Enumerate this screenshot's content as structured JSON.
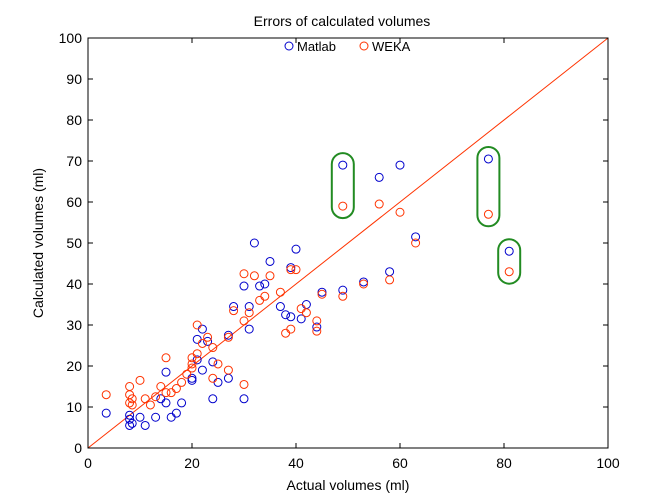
{
  "chart_data": {
    "type": "scatter",
    "title": "Errors of calculated volumes",
    "xlabel": "Actual volumes (ml)",
    "ylabel": "Calculated volumes (ml)",
    "xlim": [
      0,
      100
    ],
    "ylim": [
      0,
      100
    ],
    "xticks": [
      0,
      20,
      40,
      60,
      80,
      100
    ],
    "yticks": [
      0,
      10,
      20,
      30,
      40,
      50,
      60,
      70,
      80,
      90,
      100
    ],
    "grid": false,
    "legend_position": "top-center",
    "series": [
      {
        "name": "Matlab",
        "color": "#0000cc",
        "marker": "circle",
        "points": [
          [
            3.5,
            8.5
          ],
          [
            8,
            5.5
          ],
          [
            8,
            7
          ],
          [
            8,
            8
          ],
          [
            8.5,
            6
          ],
          [
            10,
            7.5
          ],
          [
            11,
            5.5
          ],
          [
            13,
            7.5
          ],
          [
            14,
            12
          ],
          [
            15,
            18.5
          ],
          [
            15,
            11
          ],
          [
            16,
            7.5
          ],
          [
            17,
            8.5
          ],
          [
            18,
            11
          ],
          [
            20,
            16.5
          ],
          [
            20,
            17
          ],
          [
            21,
            26.5
          ],
          [
            21,
            21.5
          ],
          [
            22,
            19
          ],
          [
            22,
            29
          ],
          [
            23,
            26
          ],
          [
            24,
            12
          ],
          [
            24,
            21
          ],
          [
            25,
            16
          ],
          [
            27,
            17
          ],
          [
            27,
            27.5
          ],
          [
            28,
            34.5
          ],
          [
            30,
            39.5
          ],
          [
            30,
            12
          ],
          [
            31,
            34.5
          ],
          [
            31,
            29
          ],
          [
            32,
            50
          ],
          [
            33,
            39.5
          ],
          [
            34,
            40
          ],
          [
            35,
            45.5
          ],
          [
            37,
            34.5
          ],
          [
            38,
            32.5
          ],
          [
            39,
            44
          ],
          [
            39,
            32
          ],
          [
            40,
            48.5
          ],
          [
            41,
            31.5
          ],
          [
            42,
            35
          ],
          [
            44,
            29.5
          ],
          [
            45,
            38
          ],
          [
            49,
            69
          ],
          [
            49,
            38.5
          ],
          [
            53,
            40.5
          ],
          [
            56,
            66
          ],
          [
            58,
            43
          ],
          [
            60,
            69
          ],
          [
            63,
            51.5
          ],
          [
            77,
            70.5
          ],
          [
            81,
            48
          ]
        ]
      },
      {
        "name": "WEKA",
        "color": "#ff3300",
        "marker": "circle",
        "points": [
          [
            3.5,
            13
          ],
          [
            8,
            15
          ],
          [
            8,
            13
          ],
          [
            8,
            11
          ],
          [
            8.5,
            10.5
          ],
          [
            8.5,
            12
          ],
          [
            10,
            16.5
          ],
          [
            11,
            12
          ],
          [
            12,
            10.5
          ],
          [
            13,
            12.5
          ],
          [
            14,
            15
          ],
          [
            15,
            22
          ],
          [
            15,
            13.5
          ],
          [
            16,
            13.5
          ],
          [
            17,
            14.5
          ],
          [
            18,
            16
          ],
          [
            19,
            18
          ],
          [
            20,
            20.5
          ],
          [
            20,
            22
          ],
          [
            20,
            19.5
          ],
          [
            21,
            30
          ],
          [
            21,
            23
          ],
          [
            22,
            25.5
          ],
          [
            23,
            27
          ],
          [
            24,
            24.5
          ],
          [
            24,
            17
          ],
          [
            25,
            20.5
          ],
          [
            27,
            19
          ],
          [
            27,
            27
          ],
          [
            28,
            33.5
          ],
          [
            30,
            42.5
          ],
          [
            30,
            31
          ],
          [
            30,
            15.5
          ],
          [
            31,
            33
          ],
          [
            32,
            42
          ],
          [
            33,
            36
          ],
          [
            34,
            37
          ],
          [
            35,
            42
          ],
          [
            37,
            38
          ],
          [
            38,
            28
          ],
          [
            39,
            43.5
          ],
          [
            39,
            29
          ],
          [
            40,
            43.5
          ],
          [
            41,
            34
          ],
          [
            42,
            33
          ],
          [
            44,
            28.5
          ],
          [
            44,
            31
          ],
          [
            45,
            37.5
          ],
          [
            49,
            59
          ],
          [
            49,
            37
          ],
          [
            53,
            40
          ],
          [
            56,
            59.5
          ],
          [
            58,
            41
          ],
          [
            60,
            57.5
          ],
          [
            63,
            50
          ],
          [
            77,
            57
          ],
          [
            81,
            43
          ]
        ]
      }
    ],
    "reference_line": {
      "from": [
        0,
        0
      ],
      "to": [
        100,
        100
      ],
      "color": "#ff3300"
    },
    "highlight_groups": {
      "color": "#228b22",
      "boxes": [
        {
          "x": 49,
          "y_low": 59,
          "y_high": 69
        },
        {
          "x": 77,
          "y_low": 57,
          "y_high": 70.5
        },
        {
          "x": 81,
          "y_low": 43,
          "y_high": 48
        }
      ]
    }
  }
}
